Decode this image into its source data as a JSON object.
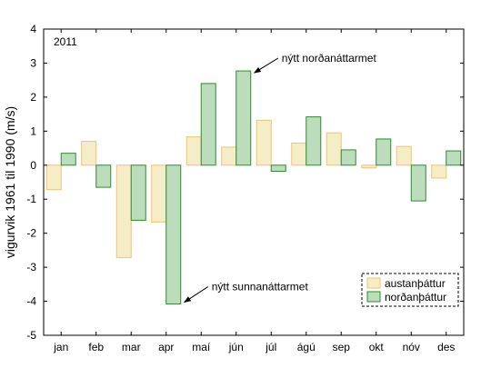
{
  "chart_data": {
    "type": "bar",
    "year_label": "2011",
    "ylabel": "vigurvik 1961 til 1990 (m/s)",
    "xlabel": "",
    "ylim": [
      -5,
      4
    ],
    "yticks": [
      -5,
      -4,
      -3,
      -2,
      -1,
      0,
      1,
      2,
      3,
      4
    ],
    "categories": [
      "jan",
      "feb",
      "mar",
      "apr",
      "maí",
      "jún",
      "júl",
      "ágú",
      "sep",
      "okt",
      "nóv",
      "des"
    ],
    "series": [
      {
        "name": "austanþáttur",
        "fill": "#f5ecc8",
        "stroke": "#f0c36a",
        "values": [
          -0.72,
          0.7,
          -2.72,
          -1.67,
          0.83,
          0.53,
          1.32,
          0.65,
          0.95,
          -0.08,
          0.55,
          -0.38
        ]
      },
      {
        "name": "norðanþáttur",
        "fill": "#bcdcbc",
        "stroke": "#2e8b2e",
        "values": [
          0.35,
          -0.65,
          -1.62,
          -4.08,
          2.4,
          2.77,
          -0.18,
          1.42,
          0.45,
          0.77,
          -1.05,
          0.42
        ]
      }
    ],
    "annotations": [
      {
        "text": "nýtt norðanáttarmet",
        "month_index": 5,
        "series_index": 1
      },
      {
        "text": "nýtt sunnanáttarmet",
        "month_index": 3,
        "series_index": 1
      }
    ],
    "legend_position": "bottom-right",
    "grid": false
  }
}
